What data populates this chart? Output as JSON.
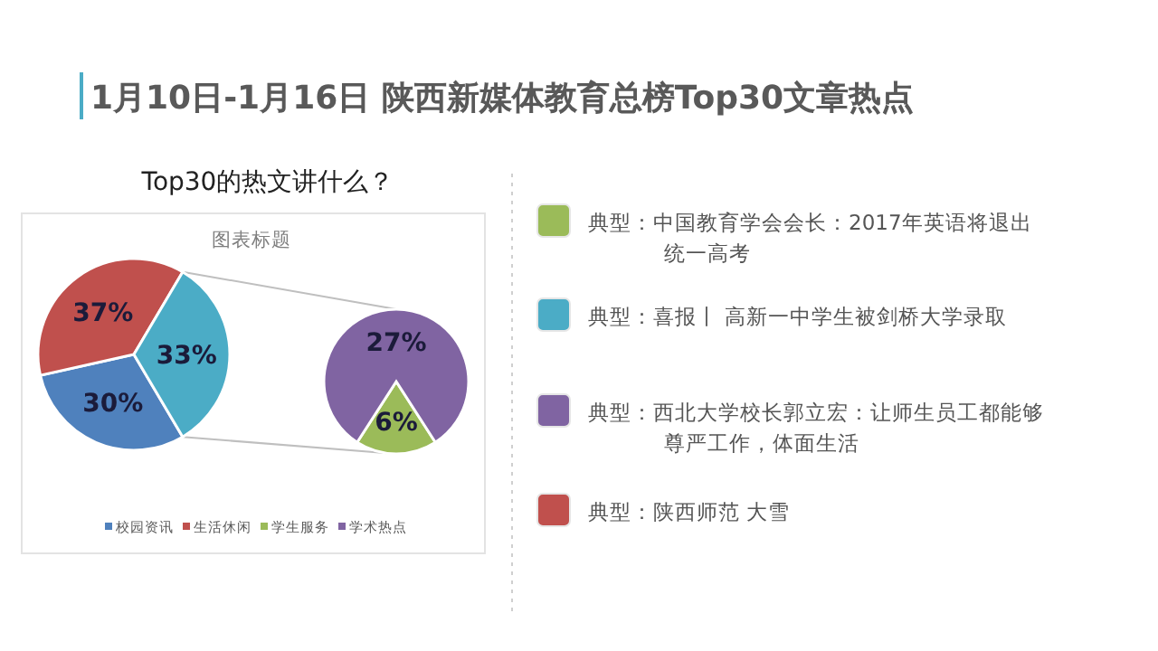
{
  "chart_data": [
    {
      "type": "pie",
      "title": "Top30的热文讲什么？",
      "subtitle": "图表标题",
      "categories": [
        "校园资讯",
        "生活休闲",
        null
      ],
      "values": [
        30,
        37,
        33
      ],
      "colors": [
        "#4f81bd",
        "#c0504d",
        "#4bacc6"
      ],
      "value_labels": [
        "30%",
        "37%",
        "33%"
      ],
      "legend": "bottom"
    },
    {
      "type": "pie",
      "categories": [
        "学生服务",
        "学术热点"
      ],
      "values": [
        6,
        27
      ],
      "colors": [
        "#9bbb59",
        "#8064a2"
      ],
      "value_labels": [
        "6%",
        "27%"
      ],
      "legend": "bottom"
    },
    {
      "type": "other",
      "title": "1月10日-1月16日 陕西新媒体教育总榜Top30文章热点",
      "annotations": [
        "典型：中国教育学会会长：2017年英语将退出统一高考",
        "典型：喜报丨  高新一中学生被剑桥大学录取",
        "典型：西北大学校长郭立宏：让师生员工都能够尊严工作，体面生活",
        "典型：陕西师范 大雪"
      ],
      "colors": [
        "#9bbb59",
        "#4bacc6",
        "#8064a2",
        "#c0504d"
      ]
    }
  ]
}
